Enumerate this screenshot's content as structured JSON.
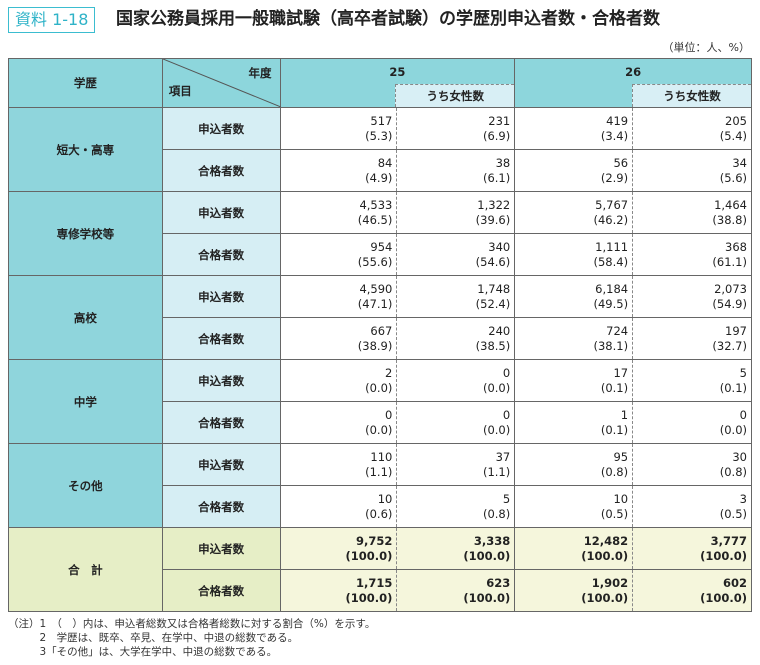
{
  "header": {
    "tag": "資料 1-18",
    "title": "国家公務員採用一般職試験（高卒者試験）の学歴別申込者数・合格者数",
    "unit": "（単位：人、%）"
  },
  "table": {
    "col_education": "学歴",
    "col_year": "年度",
    "col_item": "項目",
    "years": [
      "25",
      "26"
    ],
    "female_label": "うち女性数",
    "groups": [
      {
        "name": "短大・高専",
        "rows": [
          {
            "item": "申込者数",
            "values": [
              [
                "517",
                "(5.3)"
              ],
              [
                "231",
                "(6.9)"
              ],
              [
                "419",
                "(3.4)"
              ],
              [
                "205",
                "(5.4)"
              ]
            ]
          },
          {
            "item": "合格者数",
            "values": [
              [
                "84",
                "(4.9)"
              ],
              [
                "38",
                "(6.1)"
              ],
              [
                "56",
                "(2.9)"
              ],
              [
                "34",
                "(5.6)"
              ]
            ]
          }
        ]
      },
      {
        "name": "専修学校等",
        "rows": [
          {
            "item": "申込者数",
            "values": [
              [
                "4,533",
                "(46.5)"
              ],
              [
                "1,322",
                "(39.6)"
              ],
              [
                "5,767",
                "(46.2)"
              ],
              [
                "1,464",
                "(38.8)"
              ]
            ]
          },
          {
            "item": "合格者数",
            "values": [
              [
                "954",
                "(55.6)"
              ],
              [
                "340",
                "(54.6)"
              ],
              [
                "1,111",
                "(58.4)"
              ],
              [
                "368",
                "(61.1)"
              ]
            ]
          }
        ]
      },
      {
        "name": "高校",
        "rows": [
          {
            "item": "申込者数",
            "values": [
              [
                "4,590",
                "(47.1)"
              ],
              [
                "1,748",
                "(52.4)"
              ],
              [
                "6,184",
                "(49.5)"
              ],
              [
                "2,073",
                "(54.9)"
              ]
            ]
          },
          {
            "item": "合格者数",
            "values": [
              [
                "667",
                "(38.9)"
              ],
              [
                "240",
                "(38.5)"
              ],
              [
                "724",
                "(38.1)"
              ],
              [
                "197",
                "(32.7)"
              ]
            ]
          }
        ]
      },
      {
        "name": "中学",
        "rows": [
          {
            "item": "申込者数",
            "values": [
              [
                "2",
                "(0.0)"
              ],
              [
                "0",
                "(0.0)"
              ],
              [
                "17",
                "(0.1)"
              ],
              [
                "5",
                "(0.1)"
              ]
            ]
          },
          {
            "item": "合格者数",
            "values": [
              [
                "0",
                "(0.0)"
              ],
              [
                "0",
                "(0.0)"
              ],
              [
                "1",
                "(0.1)"
              ],
              [
                "0",
                "(0.0)"
              ]
            ]
          }
        ]
      },
      {
        "name": "その他",
        "rows": [
          {
            "item": "申込者数",
            "values": [
              [
                "110",
                "(1.1)"
              ],
              [
                "37",
                "(1.1)"
              ],
              [
                "95",
                "(0.8)"
              ],
              [
                "30",
                "(0.8)"
              ]
            ]
          },
          {
            "item": "合格者数",
            "values": [
              [
                "10",
                "(0.6)"
              ],
              [
                "5",
                "(0.8)"
              ],
              [
                "10",
                "(0.5)"
              ],
              [
                "3",
                "(0.5)"
              ]
            ]
          }
        ]
      },
      {
        "name": "合　計",
        "total": true,
        "rows": [
          {
            "item": "申込者数",
            "values": [
              [
                "9,752",
                "(100.0)"
              ],
              [
                "3,338",
                "(100.0)"
              ],
              [
                "12,482",
                "(100.0)"
              ],
              [
                "3,777",
                "(100.0)"
              ]
            ]
          },
          {
            "item": "合格者数",
            "values": [
              [
                "1,715",
                "(100.0)"
              ],
              [
                "623",
                "(100.0)"
              ],
              [
                "1,902",
                "(100.0)"
              ],
              [
                "602",
                "(100.0)"
              ]
            ]
          }
        ]
      }
    ]
  },
  "notes": [
    "（注）1　（　）内は、申込者総数又は合格者総数に対する割合（%）を示す。",
    "　　　2　学歴は、既卒、卒見、在学中、中退の総数である。",
    "　　　3「その他」は、大学在学中、中退の総数である。"
  ],
  "colors": {
    "header": "#8dd6dc",
    "item": "#d6eef4",
    "total": "#e6eec6",
    "total_values": "#f5f6dc",
    "tag": "#2fb3c8"
  }
}
